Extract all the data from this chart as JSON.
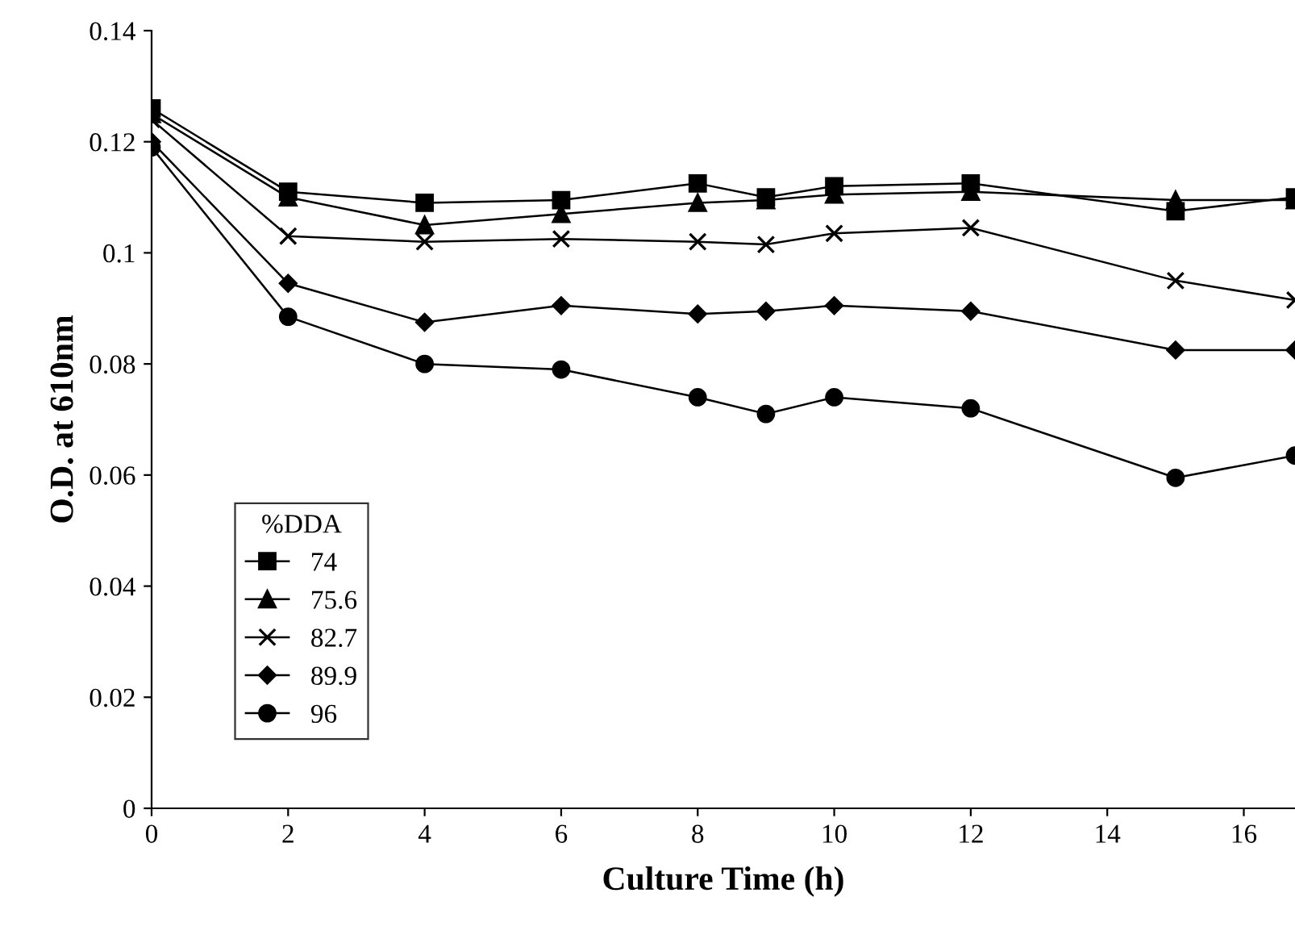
{
  "chart_data": {
    "type": "line",
    "xlabel": "Culture Time (h)",
    "ylabel": "O.D. at 610nm",
    "legend_title": "%DDA",
    "legend": "bottom left",
    "grid": false,
    "x": [
      0,
      2,
      4,
      6,
      8,
      9,
      10,
      12,
      15,
      16.75
    ],
    "series": [
      {
        "name": "74",
        "color": "#000000",
        "marker": "square",
        "values": [
          0.126,
          0.111,
          0.109,
          0.1095,
          0.1125,
          0.11,
          0.112,
          0.1125,
          0.1075,
          0.11
        ]
      },
      {
        "name": "75.6",
        "color": "#000000",
        "marker": "triangle",
        "values": [
          0.125,
          0.11,
          0.105,
          0.107,
          0.109,
          0.1095,
          0.1105,
          0.111,
          0.1095,
          0.1095
        ]
      },
      {
        "name": "82.7",
        "color": "#000000",
        "marker": "cross",
        "values": [
          0.124,
          0.103,
          0.102,
          0.1025,
          0.102,
          0.1015,
          0.1035,
          0.1045,
          0.095,
          0.0915
        ]
      },
      {
        "name": "89.9",
        "color": "#000000",
        "marker": "diamond",
        "values": [
          0.12,
          0.0945,
          0.0875,
          0.0905,
          0.089,
          0.0895,
          0.0905,
          0.0895,
          0.0825,
          0.0825
        ]
      },
      {
        "name": "96",
        "color": "#000000",
        "marker": "circle",
        "values": [
          0.119,
          0.0885,
          0.08,
          0.079,
          0.074,
          0.071,
          0.074,
          0.072,
          0.0595,
          0.0635
        ]
      }
    ],
    "xlim": [
      0,
      16.75
    ],
    "xticks": [
      0,
      2,
      4,
      6,
      8,
      10,
      12,
      14,
      16
    ],
    "ylim": [
      0,
      0.14
    ],
    "yticks": [
      0,
      0.02,
      0.04,
      0.06,
      0.08,
      0.1,
      0.12,
      0.14
    ]
  }
}
